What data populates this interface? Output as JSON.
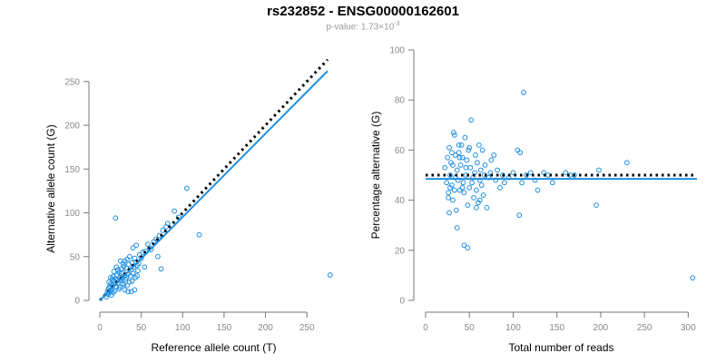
{
  "title": "rs232852 - ENSG00000162601",
  "pvalue": {
    "prefix": "p-value: 1.73×10",
    "exponent": "-3"
  },
  "colors": {
    "series": "#1f8fe0",
    "reference_line": "#000000",
    "axis": "#777777",
    "tick_text": "#888888",
    "subtitle": "#999999"
  },
  "chart_data": [
    {
      "type": "scatter",
      "xlabel": "Reference allele count (T)",
      "ylabel": "Alternative allele count (G)",
      "xlim": [
        0,
        275
      ],
      "ylim": [
        0,
        255
      ],
      "xticks": [
        0,
        50,
        100,
        150,
        200,
        250
      ],
      "yticks": [
        0,
        50,
        100,
        150,
        200,
        250
      ],
      "grid": false,
      "reference_line": {
        "style": "dotted",
        "color": "#000000",
        "from": [
          0,
          0
        ],
        "to": [
          275,
          275
        ]
      },
      "fit_line": {
        "style": "solid",
        "color": "#1f8fe0",
        "from": [
          0,
          0
        ],
        "to": [
          275,
          262
        ]
      },
      "points": [
        [
          8,
          4
        ],
        [
          10,
          7
        ],
        [
          12,
          10
        ],
        [
          14,
          12
        ],
        [
          11,
          14
        ],
        [
          15,
          17
        ],
        [
          16,
          9
        ],
        [
          18,
          19
        ],
        [
          20,
          15
        ],
        [
          17,
          22
        ],
        [
          19,
          25
        ],
        [
          22,
          20
        ],
        [
          21,
          29
        ],
        [
          23,
          13
        ],
        [
          24,
          26
        ],
        [
          25,
          23
        ],
        [
          26,
          31
        ],
        [
          13,
          19
        ],
        [
          10,
          12
        ],
        [
          14,
          6
        ],
        [
          18,
          11
        ],
        [
          20,
          38
        ],
        [
          17,
          33
        ],
        [
          26,
          36
        ],
        [
          28,
          32
        ],
        [
          29,
          18
        ],
        [
          30,
          28
        ],
        [
          31,
          24
        ],
        [
          32,
          37
        ],
        [
          34,
          30
        ],
        [
          35,
          41
        ],
        [
          36,
          21
        ],
        [
          33,
          17
        ],
        [
          38,
          35
        ],
        [
          39,
          43
        ],
        [
          40,
          31
        ],
        [
          42,
          48
        ],
        [
          41,
          38
        ],
        [
          43,
          26
        ],
        [
          44,
          44
        ],
        [
          45,
          40
        ],
        [
          46,
          34
        ],
        [
          37,
          28
        ],
        [
          27,
          25
        ],
        [
          12,
          16
        ],
        [
          9,
          9
        ],
        [
          16,
          27
        ],
        [
          22,
          35
        ],
        [
          24,
          15
        ],
        [
          30,
          12
        ],
        [
          34,
          10
        ],
        [
          38,
          10
        ],
        [
          42,
          12
        ],
        [
          19,
          94
        ],
        [
          25,
          45
        ],
        [
          40,
          60
        ],
        [
          44,
          63
        ],
        [
          48,
          52
        ],
        [
          50,
          48
        ],
        [
          52,
          55
        ],
        [
          55,
          56
        ],
        [
          58,
          64
        ],
        [
          60,
          60
        ],
        [
          62,
          58
        ],
        [
          65,
          67
        ],
        [
          68,
          70
        ],
        [
          70,
          50
        ],
        [
          74,
          36
        ],
        [
          72,
          74
        ],
        [
          76,
          80
        ],
        [
          80,
          84
        ],
        [
          82,
          88
        ],
        [
          90,
          102
        ],
        [
          95,
          95
        ],
        [
          105,
          128
        ],
        [
          120,
          75
        ],
        [
          28,
          42
        ],
        [
          33,
          47
        ],
        [
          47,
          42
        ],
        [
          54,
          38
        ],
        [
          36,
          50
        ],
        [
          30,
          45
        ],
        [
          21,
          23
        ],
        [
          15,
          24
        ],
        [
          11,
          21
        ],
        [
          13,
          26
        ],
        [
          27,
          19
        ],
        [
          23,
          32
        ],
        [
          39,
          22
        ],
        [
          45,
          28
        ],
        [
          29,
          39
        ],
        [
          32,
          26
        ],
        [
          278,
          29
        ]
      ]
    },
    {
      "type": "scatter",
      "xlabel": "Total number of reads",
      "ylabel": "Percentage alternative (G)",
      "xlim": [
        0,
        310
      ],
      "ylim": [
        0,
        100
      ],
      "xticks": [
        0,
        50,
        100,
        150,
        200,
        250,
        300
      ],
      "yticks": [
        0,
        20,
        40,
        60,
        80,
        100
      ],
      "grid": false,
      "reference_line": {
        "style": "dotted",
        "color": "#000000",
        "y": 50
      },
      "fit_line": {
        "style": "solid",
        "color": "#1f8fe0",
        "y": 48.5
      },
      "points": [
        [
          22,
          53
        ],
        [
          24,
          47
        ],
        [
          25,
          57
        ],
        [
          26,
          43
        ],
        [
          27,
          61
        ],
        [
          28,
          50
        ],
        [
          29,
          55
        ],
        [
          30,
          46
        ],
        [
          31,
          40
        ],
        [
          32,
          67
        ],
        [
          33,
          66
        ],
        [
          34,
          58
        ],
        [
          35,
          36
        ],
        [
          36,
          52
        ],
        [
          37,
          48
        ],
        [
          38,
          59
        ],
        [
          39,
          44
        ],
        [
          40,
          54
        ],
        [
          41,
          62
        ],
        [
          42,
          57
        ],
        [
          43,
          47
        ],
        [
          44,
          43
        ],
        [
          45,
          65
        ],
        [
          46,
          50
        ],
        [
          47,
          56
        ],
        [
          48,
          38
        ],
        [
          49,
          60
        ],
        [
          50,
          45
        ],
        [
          51,
          53
        ],
        [
          52,
          72
        ],
        [
          53,
          47
        ],
        [
          54,
          49
        ],
        [
          55,
          41
        ],
        [
          56,
          51
        ],
        [
          57,
          58
        ],
        [
          58,
          44
        ],
        [
          59,
          55
        ],
        [
          60,
          39
        ],
        [
          61,
          62
        ],
        [
          62,
          48
        ],
        [
          63,
          52
        ],
        [
          64,
          46
        ],
        [
          65,
          60
        ],
        [
          66,
          42
        ],
        [
          67,
          50
        ],
        [
          68,
          54
        ],
        [
          70,
          37
        ],
        [
          72,
          49
        ],
        [
          74,
          51
        ],
        [
          75,
          56
        ],
        [
          78,
          58
        ],
        [
          80,
          48
        ],
        [
          82,
          52
        ],
        [
          85,
          45
        ],
        [
          88,
          50
        ],
        [
          90,
          47
        ],
        [
          95,
          49
        ],
        [
          100,
          51
        ],
        [
          105,
          60
        ],
        [
          107,
          34
        ],
        [
          108,
          59
        ],
        [
          110,
          47
        ],
        [
          112,
          83
        ],
        [
          115,
          50
        ],
        [
          120,
          51
        ],
        [
          125,
          48
        ],
        [
          128,
          44
        ],
        [
          135,
          51
        ],
        [
          140,
          50
        ],
        [
          145,
          47
        ],
        [
          160,
          51
        ],
        [
          165,
          50
        ],
        [
          170,
          50
        ],
        [
          195,
          38
        ],
        [
          198,
          52
        ],
        [
          230,
          55
        ],
        [
          26,
          41
        ],
        [
          28,
          45
        ],
        [
          30,
          59
        ],
        [
          33,
          44
        ],
        [
          36,
          29
        ],
        [
          38,
          62
        ],
        [
          44,
          22
        ],
        [
          48,
          21
        ],
        [
          50,
          61
        ],
        [
          27,
          35
        ],
        [
          31,
          54
        ],
        [
          34,
          49
        ],
        [
          39,
          57
        ],
        [
          42,
          45
        ],
        [
          46,
          53
        ],
        [
          58,
          37
        ],
        [
          62,
          40
        ],
        [
          305,
          9
        ]
      ]
    }
  ]
}
